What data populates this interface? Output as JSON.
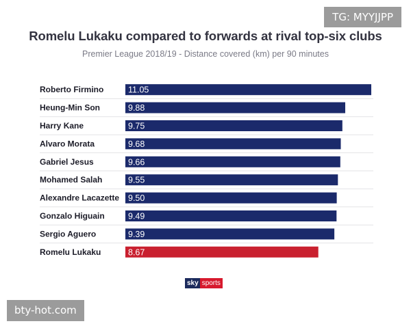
{
  "watermark_top": "TG: MYYJJPP",
  "watermark_bottom": "bty-hot.com",
  "logo": {
    "sky": "sky",
    "sports": "sports"
  },
  "colors": {
    "bar": "#1b2a6b",
    "highlight": "#c9202f",
    "divider": "#e3e3e6"
  },
  "chart_data": {
    "type": "bar",
    "orientation": "horizontal",
    "title": "Romelu Lukaku compared to forwards at rival top-six clubs",
    "subtitle": "Premier League 2018/19 - Distance covered (km) per 90 minutes",
    "xlabel": "",
    "ylabel": "",
    "categories": [
      "Roberto Firmino",
      "Heung-Min Son",
      "Harry Kane",
      "Alvaro Morata",
      "Gabriel Jesus",
      "Mohamed Salah",
      "Alexandre Lacazette",
      "Gonzalo Higuain",
      "Sergio Aguero",
      "Romelu Lukaku"
    ],
    "values": [
      11.05,
      9.88,
      9.75,
      9.68,
      9.66,
      9.55,
      9.5,
      9.49,
      9.39,
      8.67
    ],
    "value_labels": [
      "11.05",
      "9.88",
      "9.75",
      "9.68",
      "9.66",
      "9.55",
      "9.50",
      "9.49",
      "9.39",
      "8.67"
    ],
    "highlight": "Romelu Lukaku",
    "xlim": [
      0,
      11.05
    ],
    "grid": false,
    "legend": "none"
  }
}
